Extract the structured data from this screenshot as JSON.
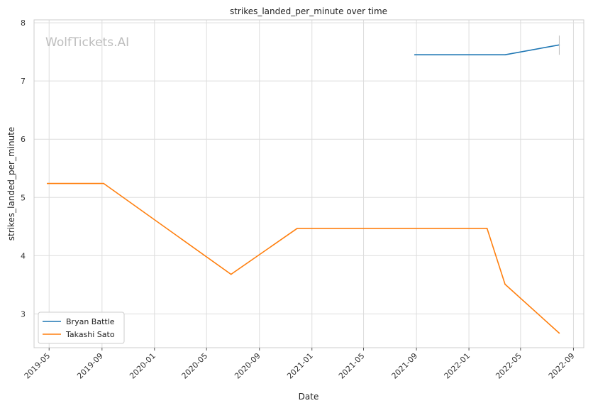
{
  "chart_data": {
    "type": "line",
    "title": "strikes_landed_per_minute over time",
    "xlabel": "Date",
    "ylabel": "strikes_landed_per_minute",
    "watermark": "WolfTickets.AI",
    "x_ticks": [
      "2019-05",
      "2019-09",
      "2020-01",
      "2020-05",
      "2020-09",
      "2021-01",
      "2021-05",
      "2021-09",
      "2022-01",
      "2022-05",
      "2022-09"
    ],
    "y_ticks": [
      3,
      4,
      5,
      6,
      7,
      8
    ],
    "xlim": [
      "2019-03-27",
      "2022-09-25"
    ],
    "ylim": [
      2.42,
      8.05
    ],
    "grid": true,
    "legend_position": "lower-left",
    "series": [
      {
        "name": "Bryan Battle",
        "color": "#1f77b4",
        "points": [
          {
            "x": "2021-08-28",
            "y": 7.45
          },
          {
            "x": "2022-03-26",
            "y": 7.45
          },
          {
            "x": "2022-07-30",
            "y": 7.62
          }
        ]
      },
      {
        "name": "Takashi Sato",
        "color": "#ff7f0e",
        "points": [
          {
            "x": "2019-04-27",
            "y": 5.24
          },
          {
            "x": "2019-09-05",
            "y": 5.24
          },
          {
            "x": "2020-06-27",
            "y": 3.68
          },
          {
            "x": "2020-11-28",
            "y": 4.47
          },
          {
            "x": "2022-02-12",
            "y": 4.47
          },
          {
            "x": "2022-03-26",
            "y": 3.51
          },
          {
            "x": "2022-07-30",
            "y": 2.67
          }
        ]
      }
    ],
    "error_bar": {
      "x": "2022-07-30",
      "y_low": 7.45,
      "y_high": 7.78
    }
  }
}
